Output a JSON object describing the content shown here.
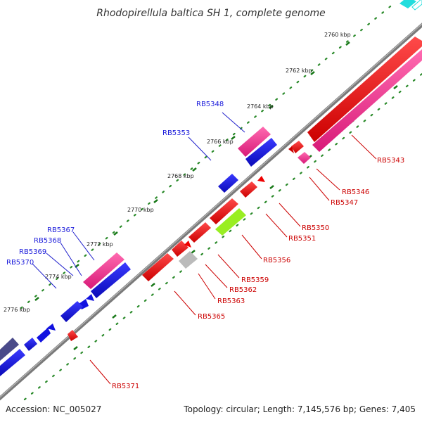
{
  "title": "Rhodopirellula baltica SH 1, complete genome",
  "footer": {
    "accession": "Accession: NC_005027",
    "summary": "Topology: circular; Length: 7,145,576 bp; Genes: 7,405"
  },
  "ticks": [
    "2760 kbp",
    "2762 kbp",
    "2764 kbp",
    "2766 kbp",
    "2768 kbp",
    "2770 kbp",
    "2772 kbp",
    "2774 kbp",
    "2776 kbp"
  ],
  "genes": [
    {
      "label": "RB5348",
      "color": "#1a1adb"
    },
    {
      "label": "RB5353",
      "color": "#1a1adb"
    },
    {
      "label": "RB5367",
      "color": "#1a1adb"
    },
    {
      "label": "RB5368",
      "color": "#1a1adb"
    },
    {
      "label": "RB5369",
      "color": "#1a1adb"
    },
    {
      "label": "RB5370",
      "color": "#1a1adb"
    },
    {
      "label": "RB5343",
      "color": "#cc0000"
    },
    {
      "label": "RB5346",
      "color": "#cc0000"
    },
    {
      "label": "RB5347",
      "color": "#cc0000"
    },
    {
      "label": "RB5350",
      "color": "#cc0000"
    },
    {
      "label": "RB5351",
      "color": "#cc0000"
    },
    {
      "label": "RB5356",
      "color": "#cc0000"
    },
    {
      "label": "RB5359",
      "color": "#cc0000"
    },
    {
      "label": "RB5362",
      "color": "#cc0000"
    },
    {
      "label": "RB5363",
      "color": "#cc0000"
    },
    {
      "label": "RB5365",
      "color": "#cc0000"
    },
    {
      "label": "RB5371",
      "color": "#cc0000"
    }
  ],
  "colors": {
    "backbone": "#808080",
    "forward_red": "#ee0000",
    "forward_pink": "#ee2a8a",
    "reverse_blue": "#1212e0",
    "reverse_navy": "#4a4a8a",
    "lime": "#99ee22",
    "grey": "#bbbbbb",
    "cyan": "#22dddd",
    "tick_green": "#2a8a2a"
  }
}
